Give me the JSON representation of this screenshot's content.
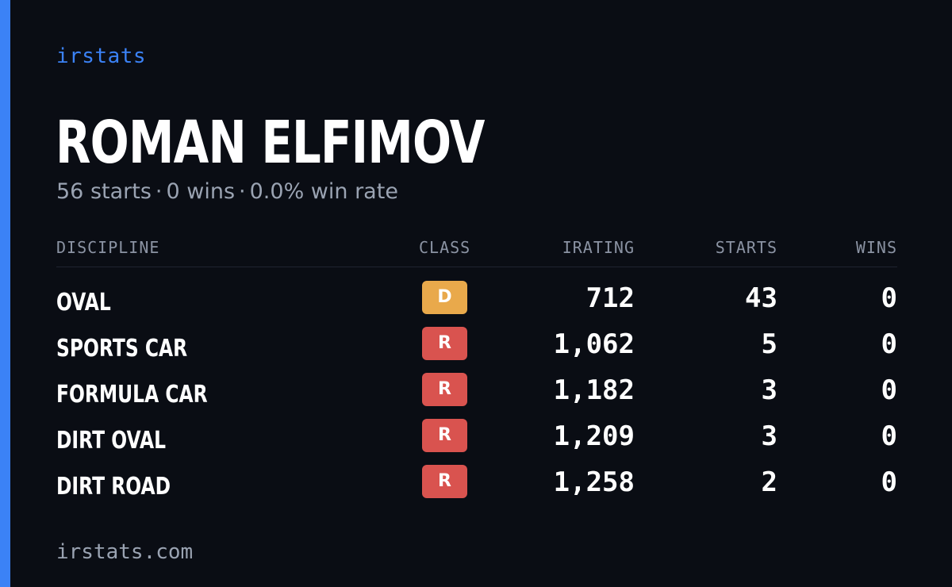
{
  "brand": "irstats",
  "driver": {
    "name": "ROMAN ELFIMOV",
    "starts_text": "56 starts",
    "wins_text": "0 wins",
    "win_rate_text": "0.0% win rate",
    "separator": "·"
  },
  "table": {
    "headers": {
      "discipline": "DISCIPLINE",
      "class": "CLASS",
      "irating": "IRATING",
      "starts": "STARTS",
      "wins": "WINS"
    },
    "rows": [
      {
        "discipline": "OVAL",
        "class": "D",
        "class_color": "#e9a94b",
        "irating": "712",
        "starts": "43",
        "wins": "0"
      },
      {
        "discipline": "SPORTS CAR",
        "class": "R",
        "class_color": "#d9534f",
        "irating": "1,062",
        "starts": "5",
        "wins": "0"
      },
      {
        "discipline": "FORMULA CAR",
        "class": "R",
        "class_color": "#d9534f",
        "irating": "1,182",
        "starts": "3",
        "wins": "0"
      },
      {
        "discipline": "DIRT OVAL",
        "class": "R",
        "class_color": "#d9534f",
        "irating": "1,209",
        "starts": "3",
        "wins": "0"
      },
      {
        "discipline": "DIRT ROAD",
        "class": "R",
        "class_color": "#d9534f",
        "irating": "1,258",
        "starts": "2",
        "wins": "0"
      }
    ]
  },
  "footer": {
    "url": "irstats.com"
  },
  "colors": {
    "background": "#0a0d14",
    "accent": "#3b82f6",
    "muted_text": "#9aa3b2"
  }
}
